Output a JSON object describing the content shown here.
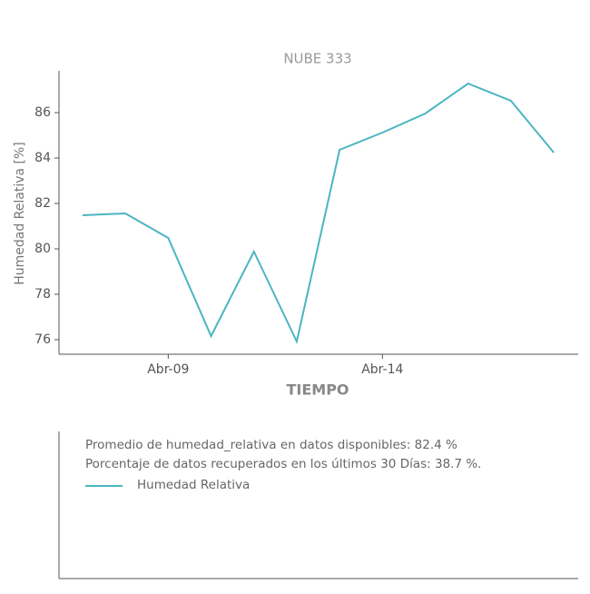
{
  "chart_data": {
    "type": "line",
    "title": "NUBE 333",
    "x": [
      "Abr-07",
      "Abr-08",
      "Abr-09",
      "Abr-10",
      "Abr-11",
      "Abr-12",
      "Abr-13",
      "Abr-14",
      "Abr-15",
      "Abr-16",
      "Abr-17",
      "Abr-18"
    ],
    "xticks": [
      "Abr-09",
      "Abr-14"
    ],
    "xlabel": "TIEMPO",
    "ylabel": "Humedad Relativa [%]",
    "series": [
      {
        "name": "Humedad Relativa",
        "color": "#4bb5c1",
        "values": [
          81.48,
          81.56,
          80.48,
          76.16,
          79.88,
          75.92,
          84.36,
          85.12,
          85.96,
          87.28,
          86.52,
          84.24
        ]
      }
    ],
    "ylim": [
      75.36,
      87.84
    ],
    "yticks": [
      76,
      78,
      80,
      82,
      84,
      86
    ],
    "notes": [
      "Promedio de humedad_relativa en datos disponibles: 82.4 %",
      "Porcentaje de datos recuperados en los últimos 30 Días: 38.7 %."
    ]
  }
}
